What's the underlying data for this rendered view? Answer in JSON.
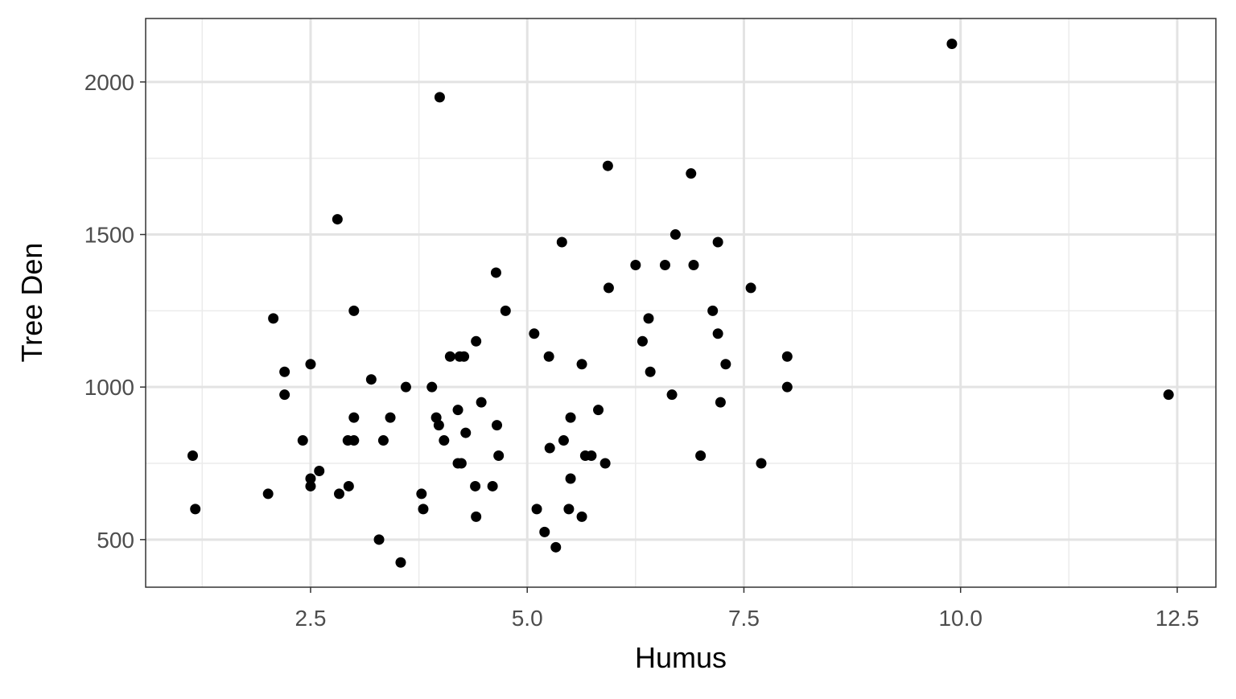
{
  "chart_data": {
    "type": "scatter",
    "x_label": "Humus",
    "y_label": "Tree Den",
    "color": "#000000",
    "grid": true,
    "xlim": [
      0.597,
      12.946
    ],
    "ylim": [
      344,
      2208
    ],
    "xticks": [
      2.5,
      {
        "value": 5,
        "label": "5.0"
      },
      7.5,
      {
        "value": 10,
        "label": "10.0"
      },
      12.5
    ],
    "yticks": [
      500,
      1000,
      1500,
      2000
    ],
    "x_minor_ticks": [
      1.25,
      3.75,
      6.25,
      8.75,
      11.25
    ],
    "y_minor_ticks": [
      750,
      1250,
      1750
    ],
    "x": [
      9.9,
      3.99,
      5.93,
      6.89,
      2.81,
      6.71,
      5.4,
      7.2,
      6.25,
      6.59,
      6.92,
      4.64,
      5.94,
      7.58,
      3.0,
      4.75,
      7.14,
      2.07,
      6.4,
      5.08,
      7.2,
      4.41,
      6.33,
      4.11,
      4.22,
      4.27,
      5.25,
      8.0,
      2.5,
      5.63,
      7.29,
      2.2,
      6.42,
      3.2,
      3.6,
      3.9,
      8.0,
      2.2,
      6.67,
      12.4,
      4.47,
      7.23,
      4.2,
      5.82,
      3.0,
      3.42,
      3.95,
      5.5,
      3.98,
      4.65,
      4.29,
      2.41,
      2.93,
      3.0,
      3.34,
      4.04,
      5.42,
      5.26,
      1.14,
      4.67,
      5.67,
      5.74,
      7.0,
      4.2,
      4.24,
      5.9,
      7.7,
      2.6,
      2.5,
      5.5,
      2.5,
      2.94,
      4.4,
      4.6,
      2.01,
      2.83,
      3.78,
      1.17,
      3.8,
      5.11,
      5.48,
      4.41,
      5.63,
      5.2,
      3.29,
      3.54,
      5.33
    ],
    "values": [
      2125,
      1950,
      1725,
      1700,
      1550,
      1500,
      1475,
      1475,
      1400,
      1400,
      1400,
      1375,
      1325,
      1325,
      1250,
      1250,
      1250,
      1225,
      1225,
      1175,
      1175,
      1150,
      1150,
      1100,
      1100,
      1100,
      1100,
      1100,
      1075,
      1075,
      1075,
      1050,
      1050,
      1025,
      1000,
      1000,
      1000,
      975,
      975,
      975,
      950,
      950,
      925,
      925,
      900,
      900,
      900,
      900,
      875,
      875,
      850,
      825,
      825,
      825,
      825,
      825,
      825,
      800,
      775,
      775,
      775,
      775,
      775,
      750,
      750,
      750,
      750,
      725,
      700,
      700,
      675,
      675,
      675,
      675,
      650,
      650,
      650,
      600,
      600,
      600,
      600,
      575,
      575,
      525,
      500,
      425,
      475
    ]
  }
}
